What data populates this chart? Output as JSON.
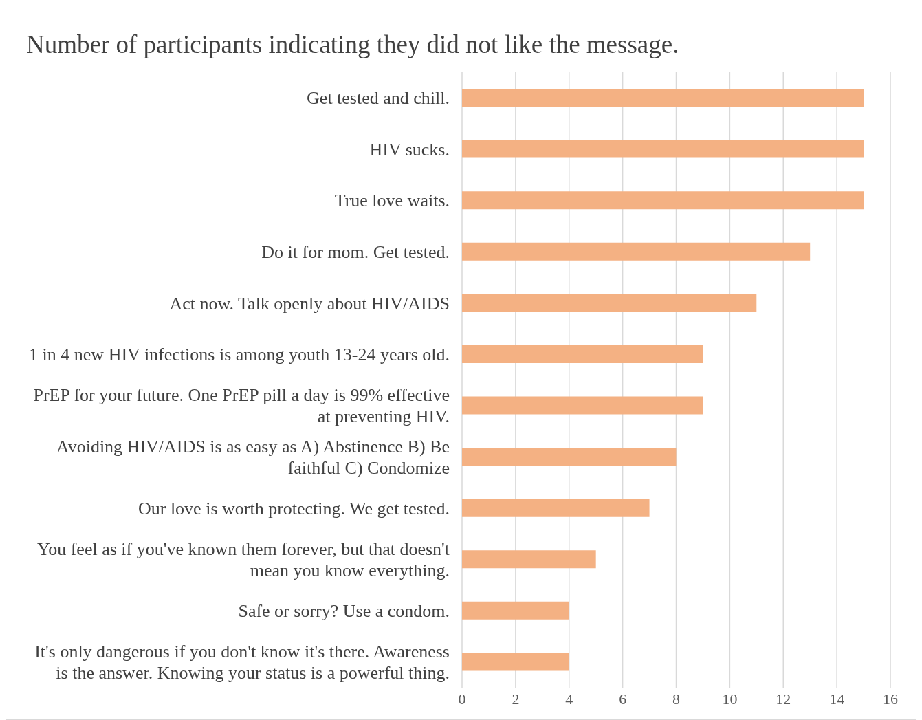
{
  "chart_data": {
    "type": "bar",
    "orientation": "horizontal",
    "title": "Number of participants indicating they did not like the message.",
    "categories": [
      "Get tested and chill.",
      "HIV sucks.",
      "True love waits.",
      "Do it for mom. Get tested.",
      "Act now. Talk openly about HIV/AIDS",
      "1 in 4 new HIV infections is among youth 13-24 years old.",
      "PrEP for your future. One PrEP pill a day is 99% effective at preventing HIV.",
      "Avoiding HIV/AIDS is as easy as A) Abstinence B) Be faithful C) Condomize",
      "Our love is worth protecting. We get tested.",
      "You feel as if you've known them forever, but that doesn't mean you know everything.",
      "Safe or sorry? Use a condom.",
      "It's only dangerous if you don't know it's there. Awareness is the answer. Knowing your status is a powerful thing."
    ],
    "values": [
      15,
      15,
      15,
      13,
      11,
      9,
      9,
      8,
      7,
      5,
      4,
      4
    ],
    "color": "#f4b183",
    "xlim": [
      0,
      16
    ],
    "xticks": [
      0,
      2,
      4,
      6,
      8,
      10,
      12,
      14,
      16
    ],
    "grid": "x",
    "legend": false
  }
}
